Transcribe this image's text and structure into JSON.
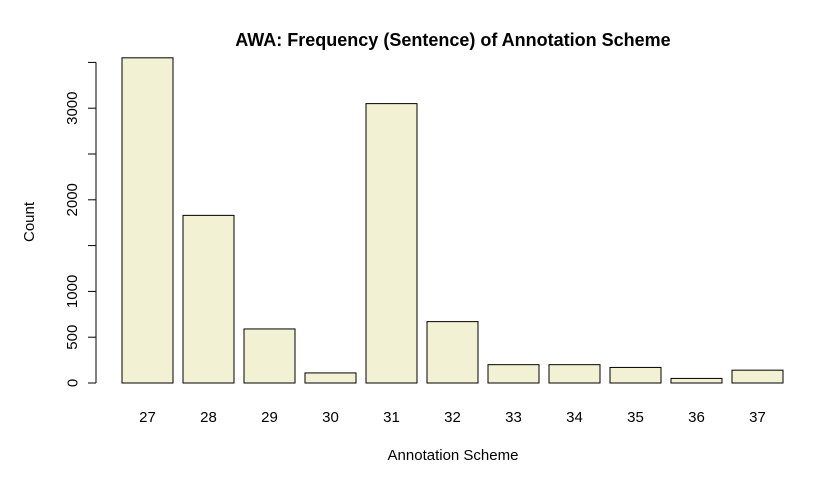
{
  "chart_data": {
    "type": "bar",
    "title": "AWA: Frequency (Sentence) of Annotation Scheme",
    "xlabel": "Annotation Scheme",
    "ylabel": "Count",
    "categories": [
      "27",
      "28",
      "29",
      "30",
      "31",
      "32",
      "33",
      "34",
      "35",
      "36",
      "37"
    ],
    "values": [
      3550,
      1830,
      590,
      110,
      3050,
      670,
      200,
      200,
      170,
      50,
      140
    ],
    "ylim": [
      0,
      3600
    ],
    "yticks": [
      0,
      500,
      1000,
      1500,
      2000,
      2500,
      3000,
      3500
    ],
    "ytick_labels": [
      "0",
      "500",
      "1000",
      "",
      "2000",
      "",
      "3000",
      ""
    ],
    "grid": false,
    "legend": "none",
    "colors": {
      "bar_fill": "#f3f1d4",
      "bar_stroke": "#000000"
    }
  }
}
